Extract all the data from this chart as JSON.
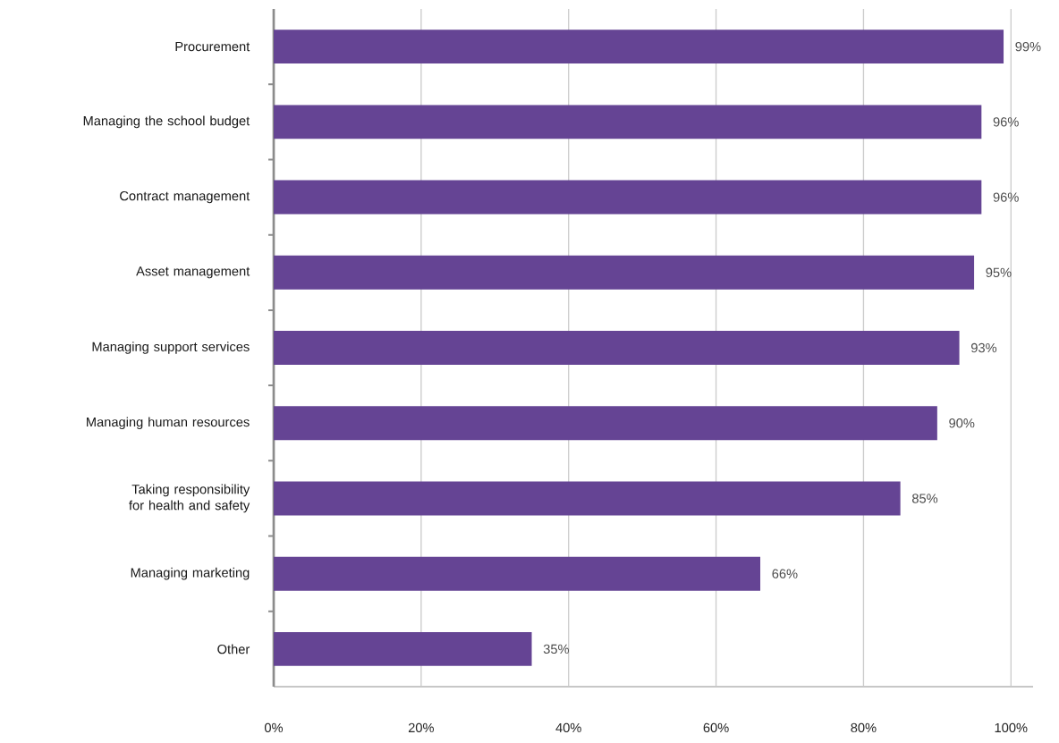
{
  "chart_data": {
    "type": "bar",
    "orientation": "horizontal",
    "categories": [
      "Procurement",
      "Managing the school budget",
      "Contract management",
      "Asset management",
      "Managing support services",
      "Managing human resources",
      "Taking responsibility for health and safety",
      "Managing marketing",
      "Other"
    ],
    "values": [
      99,
      96,
      96,
      95,
      93,
      90,
      85,
      66,
      35
    ],
    "value_labels": [
      "99%",
      "96%",
      "96%",
      "95%",
      "93%",
      "90%",
      "85%",
      "66%",
      "35%"
    ],
    "color": "#654494",
    "xlim": [
      0,
      103
    ],
    "xticks": [
      {
        "value": 0,
        "label": "0%"
      },
      {
        "value": 20,
        "label": "20%"
      },
      {
        "value": 40,
        "label": "40%"
      },
      {
        "value": 60,
        "label": "60%"
      },
      {
        "value": 80,
        "label": "80%"
      },
      {
        "value": 100,
        "label": "100%"
      }
    ],
    "grid": "x"
  }
}
